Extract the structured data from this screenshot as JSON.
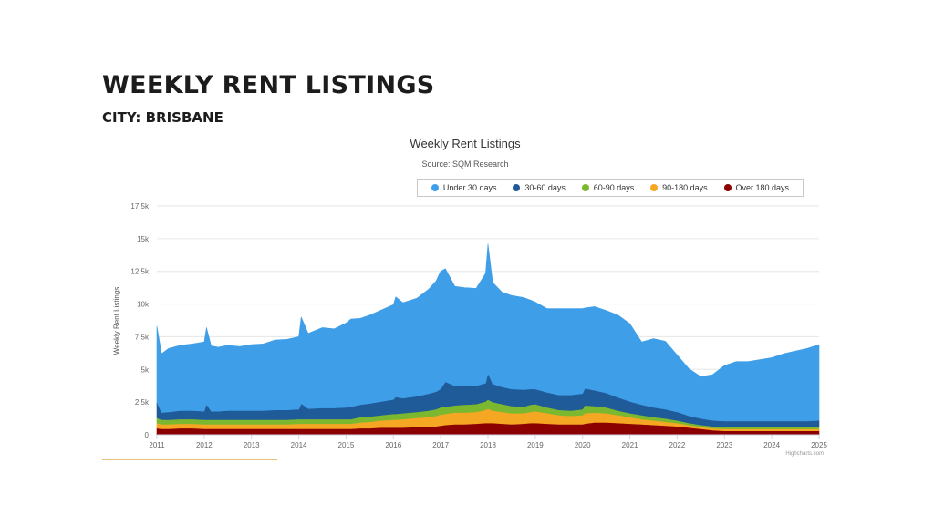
{
  "header": {
    "title": "WEEKLY RENT LISTINGS",
    "subtitle": "CITY: BRISBANE"
  },
  "credits": "Highcharts.com",
  "chart_data": {
    "type": "area",
    "stacked": true,
    "title": "Weekly Rent Listings",
    "subtitle": "Source: SQM Research",
    "ylabel": "Weekly Rent Listings",
    "xlabel": "",
    "ylim": [
      0,
      17500
    ],
    "y_ticks": [
      0,
      2500,
      5000,
      7500,
      10000,
      12500,
      15000,
      17500
    ],
    "y_tick_labels": [
      "0",
      "2.5k",
      "5k",
      "7.5k",
      "10k",
      "12.5k",
      "15k",
      "17.5k"
    ],
    "xlim": [
      2011,
      2025
    ],
    "x_ticks": [
      2011,
      2012,
      2013,
      2014,
      2015,
      2016,
      2017,
      2018,
      2019,
      2020,
      2021,
      2022,
      2023,
      2024,
      2025
    ],
    "grid": true,
    "legend_position": "top",
    "x": [
      2011.0,
      2011.1,
      2011.25,
      2011.5,
      2011.75,
      2012.0,
      2012.05,
      2012.15,
      2012.3,
      2012.5,
      2012.75,
      2013.0,
      2013.25,
      2013.5,
      2013.75,
      2014.0,
      2014.05,
      2014.2,
      2014.5,
      2014.75,
      2015.0,
      2015.1,
      2015.3,
      2015.5,
      2015.75,
      2016.0,
      2016.05,
      2016.2,
      2016.5,
      2016.75,
      2016.9,
      2017.0,
      2017.1,
      2017.3,
      2017.5,
      2017.75,
      2017.95,
      2018.0,
      2018.1,
      2018.3,
      2018.5,
      2018.75,
      2018.9,
      2019.0,
      2019.25,
      2019.5,
      2019.75,
      2020.0,
      2020.05,
      2020.25,
      2020.5,
      2020.75,
      2021.0,
      2021.25,
      2021.5,
      2021.75,
      2022.0,
      2022.25,
      2022.5,
      2022.75,
      2023.0,
      2023.25,
      2023.5,
      2023.75,
      2024.0,
      2024.25,
      2024.5,
      2024.75,
      2025.0
    ],
    "series": [
      {
        "name": "Over 180 days",
        "color": "#8b0000",
        "values": [
          500,
          450,
          450,
          500,
          500,
          450,
          450,
          450,
          450,
          450,
          450,
          450,
          450,
          450,
          450,
          450,
          450,
          450,
          450,
          450,
          450,
          450,
          500,
          500,
          550,
          550,
          550,
          550,
          600,
          600,
          650,
          700,
          750,
          800,
          800,
          850,
          900,
          900,
          900,
          850,
          800,
          850,
          900,
          900,
          850,
          800,
          800,
          800,
          850,
          950,
          950,
          900,
          850,
          800,
          750,
          700,
          650,
          550,
          450,
          350,
          300,
          300,
          300,
          300,
          300,
          300,
          300,
          300,
          300
        ]
      },
      {
        "name": "90-180 days",
        "color": "#f5a623",
        "values": [
          400,
          350,
          350,
          350,
          350,
          350,
          350,
          350,
          350,
          350,
          350,
          350,
          350,
          350,
          350,
          400,
          400,
          400,
          400,
          400,
          400,
          400,
          450,
          500,
          550,
          600,
          600,
          650,
          700,
          750,
          800,
          850,
          850,
          900,
          900,
          900,
          1000,
          1100,
          950,
          900,
          850,
          800,
          850,
          900,
          800,
          700,
          650,
          700,
          800,
          750,
          700,
          600,
          500,
          400,
          350,
          300,
          250,
          200,
          150,
          150,
          150,
          150,
          150,
          150,
          150,
          150,
          150,
          150,
          150
        ]
      },
      {
        "name": "60-90 days",
        "color": "#7cb82f",
        "values": [
          400,
          350,
          350,
          350,
          350,
          350,
          350,
          350,
          350,
          350,
          350,
          350,
          350,
          350,
          350,
          350,
          350,
          350,
          350,
          350,
          350,
          350,
          400,
          400,
          400,
          450,
          450,
          450,
          450,
          500,
          500,
          550,
          550,
          550,
          600,
          600,
          650,
          700,
          650,
          600,
          550,
          500,
          550,
          550,
          450,
          400,
          400,
          450,
          600,
          500,
          450,
          350,
          300,
          300,
          250,
          250,
          200,
          150,
          150,
          150,
          150,
          150,
          150,
          150,
          150,
          150,
          150,
          150,
          150
        ]
      },
      {
        "name": "30-60 days",
        "color": "#1f5a99",
        "values": [
          1200,
          550,
          600,
          650,
          650,
          650,
          1200,
          650,
          650,
          700,
          700,
          700,
          700,
          750,
          750,
          750,
          1200,
          800,
          850,
          850,
          900,
          950,
          950,
          1000,
          1050,
          1100,
          1300,
          1150,
          1200,
          1300,
          1350,
          1400,
          1900,
          1500,
          1500,
          1400,
          1400,
          2000,
          1400,
          1300,
          1300,
          1300,
          1200,
          1150,
          1150,
          1150,
          1200,
          1200,
          1300,
          1200,
          1100,
          1000,
          900,
          800,
          750,
          700,
          650,
          550,
          500,
          450,
          450,
          450,
          450,
          450,
          450,
          450,
          450,
          450,
          500
        ]
      },
      {
        "name": "Under 30 days",
        "color": "#3f9ee8",
        "values": [
          5800,
          4500,
          4850,
          5000,
          5100,
          5300,
          5850,
          5000,
          4900,
          5000,
          4900,
          5050,
          5100,
          5350,
          5400,
          5550,
          6600,
          5750,
          6150,
          6050,
          6450,
          6700,
          6600,
          6750,
          7000,
          7250,
          7650,
          7300,
          7500,
          8000,
          8450,
          9000,
          8650,
          7600,
          7450,
          7450,
          8400,
          9900,
          7750,
          7250,
          7150,
          7050,
          6800,
          6650,
          6400,
          6600,
          6600,
          6500,
          6150,
          6400,
          6300,
          6300,
          5950,
          4800,
          5250,
          5200,
          4350,
          3600,
          3200,
          3500,
          4250,
          4550,
          4550,
          4700,
          4850,
          5150,
          5350,
          5550,
          5800
        ]
      }
    ]
  }
}
